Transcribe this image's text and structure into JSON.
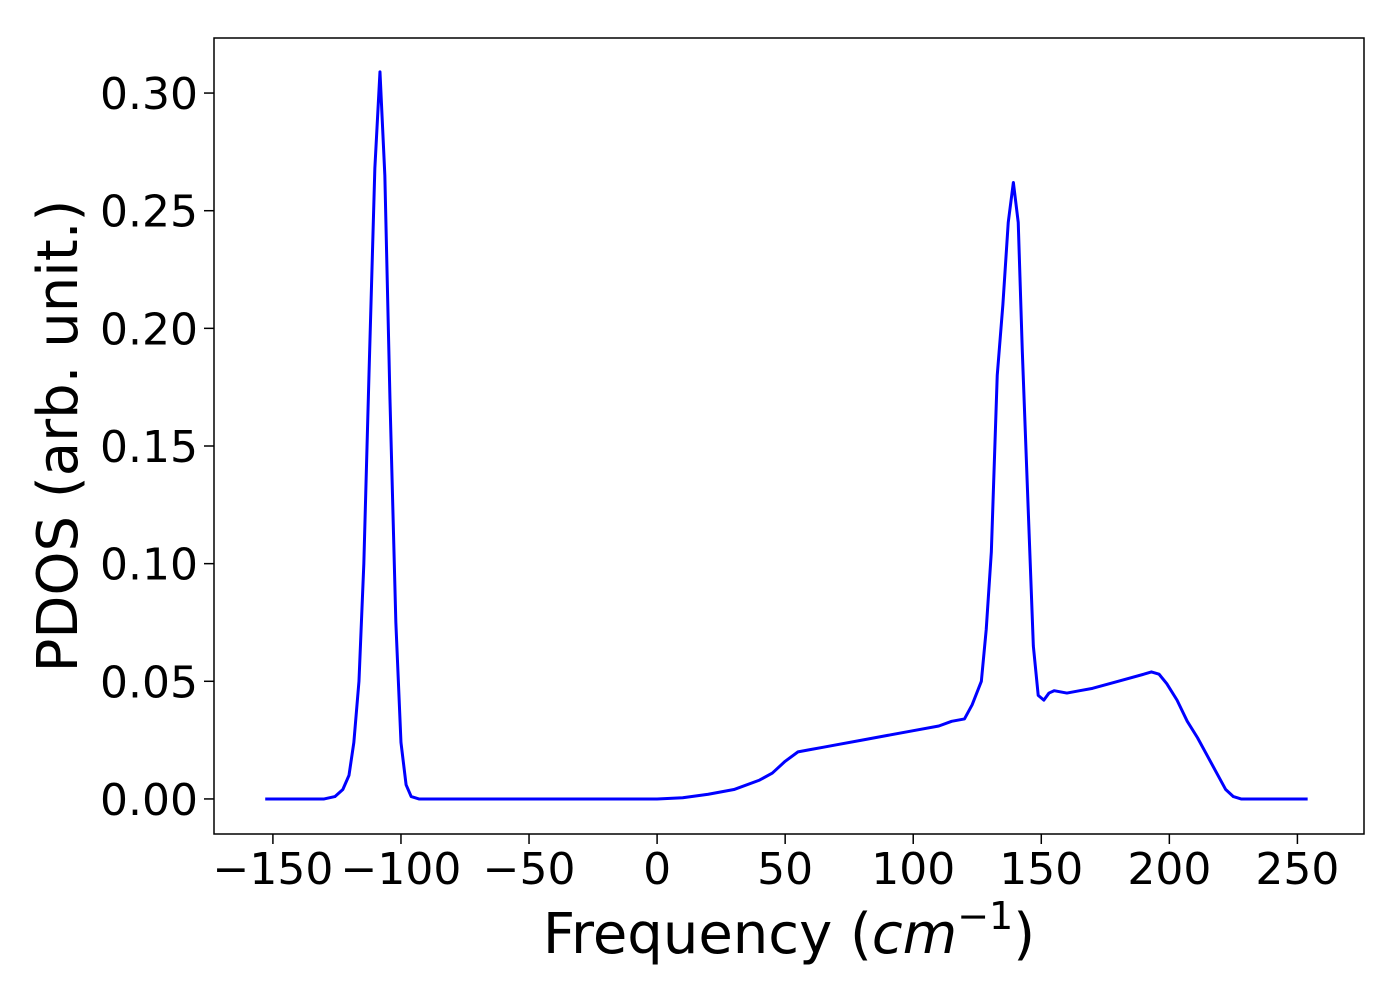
{
  "chart_data": {
    "type": "line",
    "xlabel": [
      "Frequency (",
      "cm",
      "−1",
      ")"
    ],
    "ylabel": "PDOS (arb. unit.)",
    "xlim": [
      -173,
      276
    ],
    "ylim": [
      -0.0149,
      0.3234
    ],
    "xticks": [
      {
        "value": -150,
        "label": "−150"
      },
      {
        "value": -100,
        "label": "−100"
      },
      {
        "value": -50,
        "label": "−50"
      },
      0,
      50,
      100,
      150,
      200,
      250
    ],
    "yticks": [
      {
        "value": 0,
        "label": "0.00"
      },
      {
        "value": 0.05,
        "label": "0.05"
      },
      {
        "value": 0.1,
        "label": "0.10"
      },
      {
        "value": 0.15,
        "label": "0.15"
      },
      {
        "value": 0.2,
        "label": "0.20"
      },
      {
        "value": 0.25,
        "label": "0.25"
      },
      {
        "value": 0.3,
        "label": "0.30"
      }
    ],
    "grid": false,
    "series": [
      {
        "name": "PDOS",
        "color": "#0000ff",
        "x": [
          -153,
          -130,
          -125.8,
          -122.7,
          -120.3,
          -118.4,
          -116.4,
          -114.5,
          -112.5,
          -110.2,
          -108.2,
          -106.3,
          -104.3,
          -102,
          -100,
          -98,
          -96,
          -93,
          0,
          10,
          20,
          30,
          40,
          45,
          50,
          55,
          60,
          65,
          70,
          80,
          90,
          100,
          110,
          115,
          120,
          123,
          126.6,
          128.5,
          130.5,
          132.8,
          135,
          137.1,
          139.1,
          141,
          142.6,
          145,
          146.9,
          148.8,
          151,
          153,
          155,
          160,
          165,
          170,
          180,
          190,
          193,
          196,
          199,
          203,
          207,
          211,
          215,
          219,
          222,
          225,
          228,
          254
        ],
        "values": [
          0,
          0,
          0.001,
          0.004,
          0.01,
          0.024,
          0.05,
          0.1,
          0.18,
          0.268,
          0.309,
          0.265,
          0.17,
          0.075,
          0.024,
          0.006,
          0.001,
          0,
          0,
          0.0005,
          0.002,
          0.004,
          0.008,
          0.011,
          0.016,
          0.02,
          0.021,
          0.022,
          0.023,
          0.025,
          0.027,
          0.029,
          0.031,
          0.033,
          0.034,
          0.04,
          0.05,
          0.072,
          0.105,
          0.18,
          0.21,
          0.245,
          0.262,
          0.245,
          0.19,
          0.12,
          0.065,
          0.044,
          0.042,
          0.045,
          0.046,
          0.045,
          0.046,
          0.047,
          0.05,
          0.053,
          0.054,
          0.053,
          0.049,
          0.042,
          0.033,
          0.026,
          0.018,
          0.01,
          0.004,
          0.001,
          0,
          0
        ]
      }
    ]
  }
}
